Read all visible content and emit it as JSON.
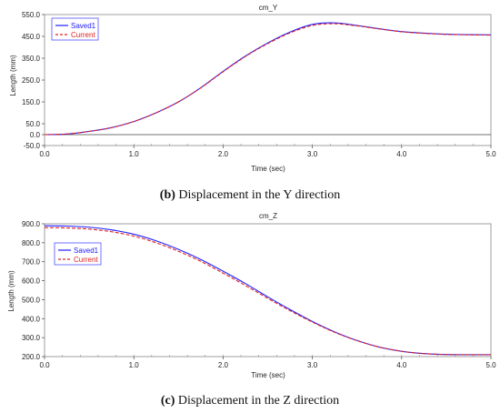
{
  "chart_data": [
    {
      "type": "line",
      "title": "cm_Y",
      "xlabel": "Time (sec)",
      "ylabel": "Length (mm)",
      "xlim": [
        0.0,
        5.0
      ],
      "ylim": [
        -50.0,
        550.0
      ],
      "xticks": [
        "0.0",
        "1.0",
        "2.0",
        "3.0",
        "4.0",
        "5.0"
      ],
      "yticks": [
        "550.0",
        "450.0",
        "350.0",
        "250.0",
        "150.0",
        "50.0",
        "0.0",
        "-50.0"
      ],
      "legend": "top-left",
      "grid": false,
      "x": [
        0,
        0.25,
        0.5,
        0.75,
        1.0,
        1.25,
        1.5,
        1.75,
        2.0,
        2.25,
        2.5,
        2.75,
        3.0,
        3.25,
        3.5,
        3.75,
        4.0,
        4.25,
        4.5,
        4.75,
        5.0
      ],
      "series": [
        {
          "name": "Saved1",
          "color": "#2020ff",
          "style": "solid",
          "values": [
            0,
            3,
            15,
            32,
            60,
            100,
            150,
            215,
            290,
            360,
            420,
            470,
            505,
            512,
            500,
            485,
            472,
            465,
            460,
            458,
            457
          ]
        },
        {
          "name": "Current",
          "color": "#e02020",
          "style": "dashed",
          "values": [
            0,
            3,
            15,
            32,
            60,
            100,
            150,
            214,
            288,
            358,
            417,
            466,
            500,
            508,
            498,
            484,
            471,
            464,
            459,
            457,
            456
          ]
        }
      ]
    },
    {
      "type": "line",
      "title": "cm_Z",
      "xlabel": "Time (sec)",
      "ylabel": "Length (mm)",
      "xlim": [
        0.0,
        5.0
      ],
      "ylim": [
        200.0,
        900.0
      ],
      "xticks": [
        "0.0",
        "1.0",
        "2.0",
        "3.0",
        "4.0",
        "5.0"
      ],
      "yticks": [
        "900.0",
        "800.0",
        "700.0",
        "600.0",
        "500.0",
        "400.0",
        "300.0",
        "200.0"
      ],
      "legend": "top-left",
      "grid": false,
      "x": [
        0,
        0.25,
        0.5,
        0.75,
        1.0,
        1.25,
        1.5,
        1.75,
        2.0,
        2.25,
        2.5,
        2.75,
        3.0,
        3.25,
        3.5,
        3.75,
        4.0,
        4.25,
        4.5,
        4.75,
        5.0
      ],
      "series": [
        {
          "name": "Saved1",
          "color": "#2020ff",
          "style": "solid",
          "values": [
            890,
            888,
            882,
            868,
            845,
            810,
            765,
            712,
            650,
            585,
            515,
            448,
            385,
            330,
            285,
            250,
            228,
            216,
            211,
            210,
            210
          ]
        },
        {
          "name": "Current",
          "color": "#e02020",
          "style": "dashed",
          "values": [
            880,
            878,
            872,
            858,
            835,
            800,
            755,
            702,
            640,
            575,
            507,
            442,
            382,
            328,
            284,
            250,
            228,
            216,
            211,
            210,
            210
          ]
        }
      ]
    }
  ],
  "captions": [
    {
      "label": "(b)",
      "text": " Displacement in the Y direction"
    },
    {
      "label": "(c)",
      "text": " Displacement in the Z direction"
    }
  ]
}
